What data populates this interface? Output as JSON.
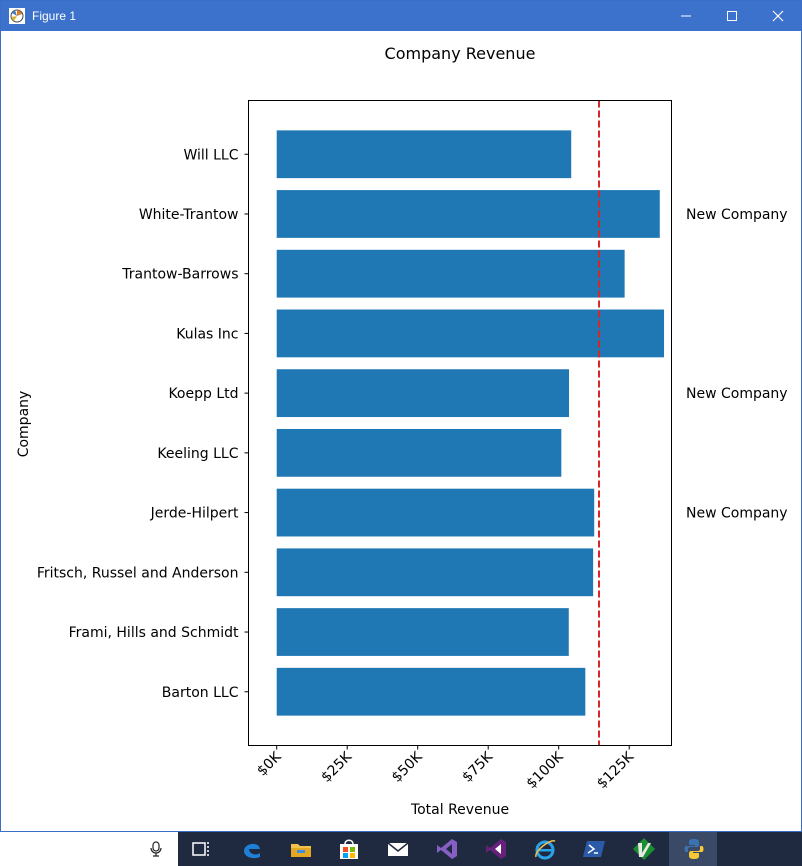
{
  "window": {
    "title": "Figure 1",
    "minimize_label": "",
    "maximize_label": "",
    "close_label": ""
  },
  "colors": {
    "titlebar": "#3d72cc",
    "bar": "#1f77b4",
    "mean_line": "#d62728",
    "taskbar": "#1f2a40"
  },
  "chart_data": {
    "type": "bar",
    "orientation": "horizontal",
    "title": "Company Revenue",
    "xlabel": "Total Revenue",
    "ylabel": "Company",
    "categories": [
      "Barton LLC",
      "Frami, Hills and Schmidt",
      "Fritsch, Russel and Anderson",
      "Jerde-Hilpert",
      "Keeling LLC",
      "Koepp Ltd",
      "Kulas Inc",
      "Trantow-Barrows",
      "White-Trantow",
      "Will LLC"
    ],
    "values": [
      109438,
      103569,
      112214,
      112591,
      100934,
      103660,
      137352,
      123381,
      135841,
      104437
    ],
    "xlim": [
      -10000,
      140000
    ],
    "xticks": [
      0,
      25000,
      50000,
      75000,
      100000,
      125000
    ],
    "xtick_labels": [
      "$0K",
      "$25K",
      "$50K",
      "$75K",
      "$100K",
      "$125K"
    ],
    "mean_line": {
      "value": 114300,
      "style": "dashed"
    },
    "annotations": [
      {
        "category": "White-Trantow",
        "text": "New Company"
      },
      {
        "category": "Koepp Ltd",
        "text": "New Company"
      },
      {
        "category": "Jerde-Hilpert",
        "text": "New Company"
      }
    ],
    "grid": false,
    "legend": "none"
  },
  "taskbar": {
    "icons": [
      "task-view-icon",
      "edge-icon",
      "file-explorer-icon",
      "store-icon",
      "mail-icon",
      "visual-studio-icon",
      "visual-studio-purple-icon",
      "internet-explorer-icon",
      "powershell-icon",
      "vim-icon",
      "python-icon"
    ]
  }
}
